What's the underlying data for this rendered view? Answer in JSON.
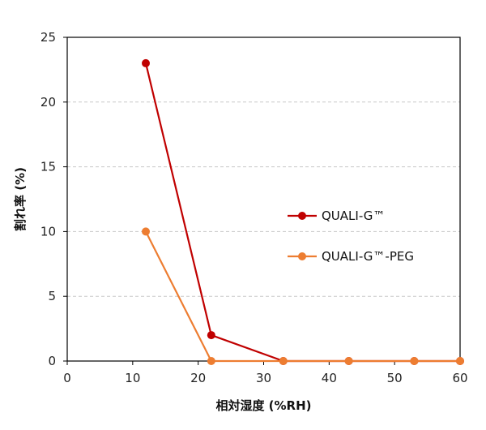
{
  "chart_data": {
    "type": "line",
    "title": "",
    "xlabel": "相対湿度 (%RH)",
    "ylabel": "割れ率 (%)",
    "xlim": [
      0,
      60
    ],
    "ylim": [
      0,
      25
    ],
    "xticks": [
      0,
      10,
      20,
      30,
      40,
      50,
      60
    ],
    "yticks": [
      0,
      5,
      10,
      15,
      20,
      25
    ],
    "grid": "horizontal-dashed",
    "legend_position": "center-right",
    "series": [
      {
        "name": "QUALI-G™",
        "color": "#C00000",
        "points": [
          {
            "x": 12,
            "y": 23
          },
          {
            "x": 22,
            "y": 2
          },
          {
            "x": 33,
            "y": 0
          },
          {
            "x": 43,
            "y": 0
          },
          {
            "x": 53,
            "y": 0
          },
          {
            "x": 60,
            "y": 0
          }
        ]
      },
      {
        "name": "QUALI-G™-PEG",
        "color": "#ED7D31",
        "points": [
          {
            "x": 12,
            "y": 10
          },
          {
            "x": 22,
            "y": 0
          },
          {
            "x": 33,
            "y": 0
          },
          {
            "x": 43,
            "y": 0
          },
          {
            "x": 53,
            "y": 0
          },
          {
            "x": 60,
            "y": 0
          }
        ]
      }
    ]
  }
}
